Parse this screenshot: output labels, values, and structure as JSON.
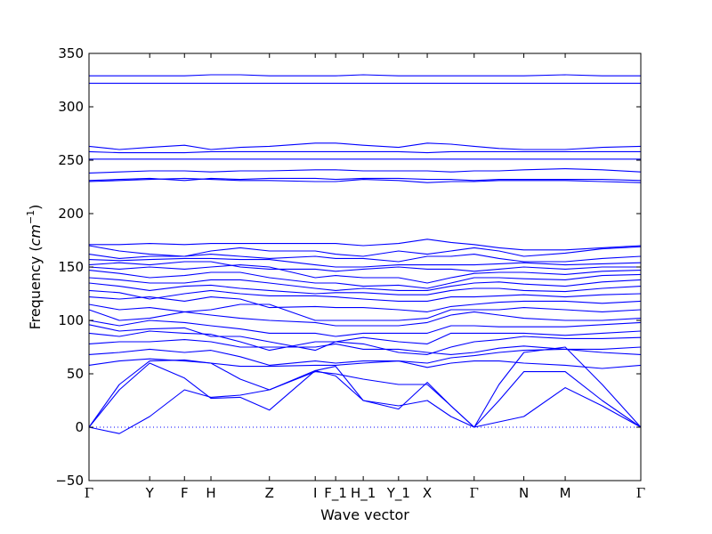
{
  "chart_data": {
    "type": "line",
    "title": "",
    "xlabel": "Wave vector",
    "ylabel": "Frequency",
    "ylabel_unit_main": "cm",
    "ylabel_unit_sup": "−1",
    "ylim": [
      -50,
      350
    ],
    "yticks": [
      -50,
      0,
      50,
      100,
      150,
      200,
      250,
      300,
      350
    ],
    "grid": false,
    "line_color": "#0000ff",
    "zero_line": {
      "y": 0,
      "style": "dotted"
    },
    "k_points": [
      {
        "label": "Γ",
        "x": 0.0
      },
      {
        "label": "Y",
        "x": 0.11
      },
      {
        "label": "F",
        "x": 0.173
      },
      {
        "label": "H",
        "x": 0.221
      },
      {
        "label": "Z",
        "x": 0.327
      },
      {
        "label": "I",
        "x": 0.41
      },
      {
        "label": "F_1",
        "x": 0.447
      },
      {
        "label": "H_1",
        "x": 0.497
      },
      {
        "label": "Y_1",
        "x": 0.561
      },
      {
        "label": "X",
        "x": 0.613
      },
      {
        "label": "Γ",
        "x": 0.698
      },
      {
        "label": "N",
        "x": 0.788
      },
      {
        "label": "M",
        "x": 0.863
      },
      {
        "label": "Γ",
        "x": 1.0
      }
    ],
    "x_grid": [
      0.0,
      0.055,
      0.11,
      0.173,
      0.221,
      0.274,
      0.327,
      0.41,
      0.447,
      0.497,
      0.561,
      0.613,
      0.656,
      0.698,
      0.743,
      0.788,
      0.863,
      0.93,
      1.0
    ],
    "series": [
      {
        "values": [
          0,
          40,
          62,
          63,
          60,
          45,
          35,
          52,
          50,
          45,
          40,
          40,
          20,
          0,
          40,
          70,
          75,
          40,
          0
        ]
      },
      {
        "values": [
          0,
          35,
          60,
          46,
          27,
          28,
          16,
          53,
          48,
          25,
          17,
          42,
          20,
          0,
          25,
          52,
          52,
          25,
          0
        ]
      },
      {
        "values": [
          0,
          -6,
          10,
          35,
          28,
          30,
          35,
          53,
          57,
          25,
          20,
          25,
          10,
          0,
          5,
          10,
          37,
          20,
          0
        ]
      },
      {
        "values": [
          58,
          62,
          64,
          62,
          60,
          57,
          57,
          58,
          58,
          60,
          62,
          56,
          60,
          62,
          62,
          60,
          58,
          55,
          58
        ]
      },
      {
        "values": [
          68,
          70,
          73,
          70,
          72,
          66,
          58,
          62,
          60,
          62,
          62,
          60,
          65,
          67,
          70,
          72,
          73,
          70,
          68
        ]
      },
      {
        "values": [
          78,
          80,
          80,
          82,
          80,
          75,
          75,
          75,
          78,
          73,
          73,
          70,
          68,
          70,
          74,
          76,
          73,
          73,
          75
        ]
      },
      {
        "values": [
          88,
          85,
          90,
          88,
          87,
          80,
          72,
          80,
          80,
          78,
          70,
          68,
          75,
          80,
          82,
          85,
          83,
          83,
          84
        ]
      },
      {
        "values": [
          96,
          90,
          92,
          93,
          85,
          85,
          80,
          72,
          80,
          84,
          80,
          78,
          88,
          88,
          88,
          88,
          86,
          88,
          90
        ]
      },
      {
        "values": [
          100,
          95,
          100,
          98,
          95,
          92,
          88,
          88,
          85,
          88,
          88,
          88,
          95,
          95,
          94,
          94,
          94,
          96,
          98
        ]
      },
      {
        "values": [
          110,
          100,
          102,
          108,
          105,
          102,
          100,
          98,
          95,
          95,
          95,
          98,
          105,
          108,
          105,
          102,
          100,
          100,
          102
        ]
      },
      {
        "values": [
          115,
          110,
          112,
          108,
          110,
          115,
          115,
          100,
          100,
          100,
          100,
          102,
          110,
          110,
          110,
          112,
          110,
          108,
          110
        ]
      },
      {
        "values": [
          122,
          120,
          122,
          118,
          122,
          120,
          112,
          113,
          112,
          112,
          110,
          108,
          113,
          115,
          117,
          118,
          118,
          116,
          118
        ]
      },
      {
        "values": [
          128,
          126,
          120,
          125,
          128,
          125,
          123,
          123,
          122,
          120,
          118,
          118,
          122,
          122,
          123,
          124,
          122,
          124,
          125
        ]
      },
      {
        "values": [
          135,
          132,
          128,
          132,
          133,
          130,
          128,
          125,
          126,
          126,
          124,
          124,
          128,
          130,
          130,
          128,
          127,
          130,
          132
        ]
      },
      {
        "values": [
          140,
          138,
          135,
          135,
          138,
          138,
          135,
          130,
          128,
          130,
          128,
          128,
          132,
          135,
          136,
          134,
          132,
          136,
          138
        ]
      },
      {
        "values": [
          147,
          144,
          140,
          142,
          145,
          145,
          140,
          135,
          135,
          132,
          133,
          130,
          135,
          140,
          140,
          139,
          138,
          142,
          143
        ]
      },
      {
        "values": [
          150,
          148,
          150,
          148,
          150,
          152,
          150,
          140,
          142,
          140,
          140,
          135,
          140,
          144,
          145,
          145,
          143,
          146,
          147
        ]
      },
      {
        "values": [
          152,
          154,
          152,
          155,
          155,
          150,
          148,
          148,
          146,
          148,
          150,
          148,
          148,
          146,
          148,
          150,
          148,
          150,
          150
        ]
      },
      {
        "values": [
          157,
          156,
          157,
          158,
          158,
          157,
          157,
          152,
          150,
          150,
          152,
          152,
          152,
          152,
          153,
          154,
          152,
          153,
          154
        ]
      },
      {
        "values": [
          162,
          158,
          160,
          160,
          162,
          160,
          158,
          160,
          158,
          158,
          155,
          160,
          160,
          162,
          158,
          155,
          155,
          158,
          160
        ]
      },
      {
        "values": [
          170,
          165,
          162,
          160,
          165,
          168,
          165,
          165,
          162,
          160,
          165,
          162,
          165,
          168,
          165,
          160,
          163,
          167,
          169
        ]
      },
      {
        "values": [
          171,
          171,
          172,
          171,
          172,
          172,
          172,
          172,
          172,
          170,
          172,
          176,
          173,
          171,
          168,
          166,
          166,
          168,
          170
        ]
      },
      {
        "values": [
          230,
          231,
          232,
          233,
          232,
          231,
          231,
          230,
          230,
          232,
          231,
          229,
          230,
          230,
          231,
          231,
          231,
          230,
          229
        ]
      },
      {
        "values": [
          231,
          232,
          233,
          231,
          233,
          232,
          233,
          233,
          232,
          233,
          233,
          232,
          232,
          231,
          232,
          232,
          232,
          232,
          231
        ]
      },
      {
        "values": [
          238,
          239,
          240,
          240,
          239,
          240,
          240,
          241,
          241,
          240,
          240,
          240,
          239,
          240,
          240,
          241,
          242,
          241,
          239
        ]
      },
      {
        "values": [
          251,
          251,
          251,
          251,
          251,
          251,
          251,
          251,
          251,
          251,
          251,
          251,
          251,
          251,
          251,
          251,
          251,
          251,
          251
        ]
      },
      {
        "values": [
          258,
          257,
          257,
          257,
          258,
          258,
          258,
          258,
          258,
          258,
          258,
          257,
          258,
          258,
          258,
          258,
          258,
          258,
          258
        ]
      },
      {
        "values": [
          263,
          260,
          262,
          264,
          260,
          262,
          263,
          266,
          266,
          264,
          262,
          266,
          265,
          263,
          261,
          260,
          260,
          262,
          263
        ]
      },
      {
        "values": [
          322,
          322,
          322,
          322,
          322,
          322,
          322,
          322,
          322,
          322,
          322,
          322,
          322,
          322,
          322,
          322,
          322,
          322,
          322
        ]
      },
      {
        "values": [
          329,
          329,
          329,
          329,
          330,
          330,
          329,
          329,
          329,
          330,
          329,
          329,
          329,
          329,
          329,
          329,
          330,
          329,
          329
        ]
      }
    ]
  }
}
